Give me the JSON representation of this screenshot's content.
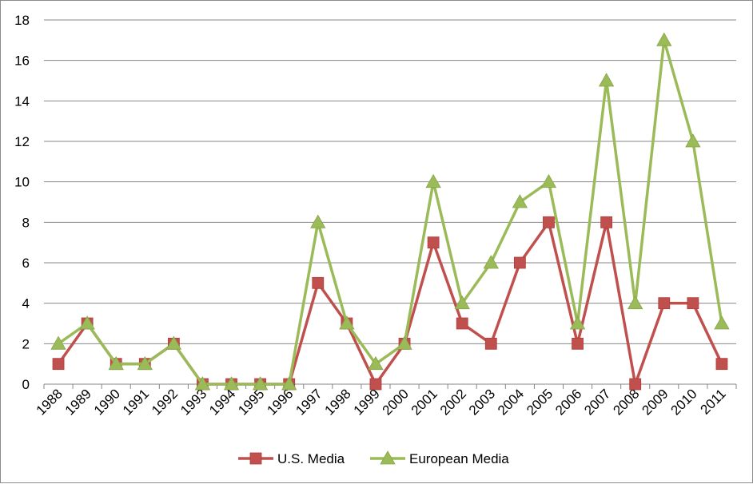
{
  "chart_data": {
    "type": "line",
    "x": [
      "1988",
      "1989",
      "1990",
      "1991",
      "1992",
      "1993",
      "1994",
      "1995",
      "1996",
      "1997",
      "1998",
      "1999",
      "2000",
      "2001",
      "2002",
      "2003",
      "2004",
      "2005",
      "2006",
      "2007",
      "2008",
      "2009",
      "2010",
      "2011"
    ],
    "ylim": [
      0,
      18
    ],
    "yticks": [
      0,
      2,
      4,
      6,
      8,
      10,
      12,
      14,
      16,
      18
    ],
    "grid": true,
    "legend_position": "bottom",
    "series": [
      {
        "name": "U.S. Media",
        "color": "#c0504d",
        "marker": "square",
        "values": [
          1,
          3,
          1,
          1,
          2,
          0,
          0,
          0,
          0,
          5,
          3,
          0,
          2,
          7,
          3,
          2,
          6,
          8,
          2,
          8,
          0,
          4,
          4,
          1
        ]
      },
      {
        "name": "European Media",
        "color": "#9bbb59",
        "marker": "triangle",
        "values": [
          2,
          3,
          1,
          1,
          2,
          0,
          0,
          0,
          0,
          8,
          3,
          1,
          2,
          10,
          4,
          6,
          9,
          10,
          3,
          15,
          4,
          17,
          12,
          3
        ]
      }
    ]
  }
}
